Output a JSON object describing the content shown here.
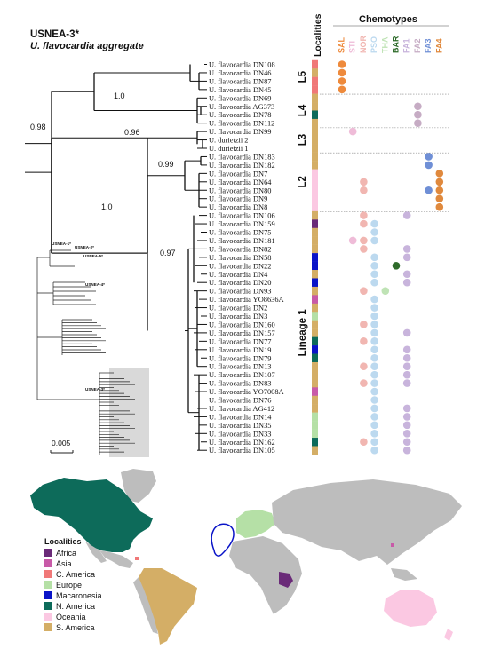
{
  "title": "USNEA-3*",
  "subtitle": "U. flavocardia aggregate",
  "localities_header": "Localities",
  "chemotypes_header": "Chemotypes",
  "scale_label": "0.005",
  "chemotypes": [
    {
      "name": "SAL",
      "color": "#ee8a3c"
    },
    {
      "name": "STI",
      "color": "#efbcd8"
    },
    {
      "name": "NOR",
      "color": "#f1b6b1"
    },
    {
      "name": "PSO",
      "color": "#bcd9ef"
    },
    {
      "name": "THA",
      "color": "#bfe3b5"
    },
    {
      "name": "BAR",
      "color": "#2e6b2a"
    },
    {
      "name": "FA1",
      "color": "#c8b4dc"
    },
    {
      "name": "FA2",
      "color": "#c6acc4"
    },
    {
      "name": "FA3",
      "color": "#6f8fd6"
    },
    {
      "name": "FA4",
      "color": "#e0893d"
    }
  ],
  "localities_legend": {
    "title": "Localities",
    "items": [
      {
        "name": "Africa",
        "color": "#6a2a78"
      },
      {
        "name": "Asia",
        "color": "#c85aa8"
      },
      {
        "name": "C. America",
        "color": "#f07878"
      },
      {
        "name": "Europe",
        "color": "#b5e0a6"
      },
      {
        "name": "Macaronesia",
        "color": "#0a14c8"
      },
      {
        "name": "N. America",
        "color": "#0d6b5a"
      },
      {
        "name": "Oceania",
        "color": "#fbc8e2"
      },
      {
        "name": "S. America",
        "color": "#d4ae66"
      }
    ]
  },
  "clades": [
    {
      "label": "L5"
    },
    {
      "label": "L4"
    },
    {
      "label": "L3"
    },
    {
      "label": "L2"
    },
    {
      "label": "Lineage 1"
    }
  ],
  "support_values": [
    "0.98",
    "1.0",
    "0.96",
    "0.99",
    "1.0",
    "0.97"
  ],
  "mini_tree_labels": [
    "USNEA-1*",
    "USNEA-2*",
    "USNEA-5*",
    "USNEA-4*",
    "USNEA-3*"
  ],
  "taxa": [
    {
      "name": "U. flavocardia DN108",
      "loc": "#f07878",
      "chem": [
        "SAL"
      ]
    },
    {
      "name": "U. flavocardia DN46",
      "loc": "#d4ae66",
      "chem": [
        "SAL"
      ]
    },
    {
      "name": "U. flavocardia DN87",
      "loc": "#f07878",
      "chem": [
        "SAL"
      ]
    },
    {
      "name": "U. flavocardia DN45",
      "loc": "#f07878",
      "chem": [
        "SAL"
      ]
    },
    {
      "name": "U. flavocardia DN69",
      "loc": "#d4ae66",
      "chem": []
    },
    {
      "name": "U. flavocardia AG373",
      "loc": "#d4ae66",
      "chem": [
        "FA2"
      ]
    },
    {
      "name": "U. flavocardia DN78",
      "loc": "#0d6b5a",
      "chem": [
        "FA2"
      ]
    },
    {
      "name": "U. flavocardia DN112",
      "loc": "#d4ae66",
      "chem": [
        "FA2"
      ]
    },
    {
      "name": "U. flavocardia DN99",
      "loc": "#d4ae66",
      "chem": [
        "STI"
      ]
    },
    {
      "name": "U. durietzii 2",
      "loc": "#d4ae66",
      "chem": []
    },
    {
      "name": "U. durietzii 1",
      "loc": "#d4ae66",
      "chem": []
    },
    {
      "name": "U. flavocardia DN183",
      "loc": "#d4ae66",
      "chem": [
        "FA3"
      ]
    },
    {
      "name": "U. flavocardia DN182",
      "loc": "#d4ae66",
      "chem": [
        "FA3"
      ]
    },
    {
      "name": "U. flavocardia DN7",
      "loc": "#fbc8e2",
      "chem": [
        "FA4"
      ]
    },
    {
      "name": "U. flavocardia DN64",
      "loc": "#fbc8e2",
      "chem": [
        "NOR",
        "FA4"
      ]
    },
    {
      "name": "U. flavocardia DN80",
      "loc": "#fbc8e2",
      "chem": [
        "NOR",
        "FA3",
        "FA4"
      ]
    },
    {
      "name": "U. flavocardia DN9",
      "loc": "#fbc8e2",
      "chem": [
        "FA4"
      ]
    },
    {
      "name": "U. flavocardia DN8",
      "loc": "#fbc8e2",
      "chem": [
        "FA4"
      ]
    },
    {
      "name": "U. flavocardia DN106",
      "loc": "#d4ae66",
      "chem": [
        "NOR",
        "FA1"
      ]
    },
    {
      "name": "U. flavocardia DN159",
      "loc": "#6a2a78",
      "chem": [
        "NOR",
        "PSO"
      ]
    },
    {
      "name": "U. flavocardia DN75",
      "loc": "#d4ae66",
      "chem": [
        "PSO"
      ]
    },
    {
      "name": "U. flavocardia DN181",
      "loc": "#d4ae66",
      "chem": [
        "STI",
        "NOR",
        "PSO"
      ]
    },
    {
      "name": "U. flavocardia DN82",
      "loc": "#d4ae66",
      "chem": [
        "NOR",
        "FA1"
      ]
    },
    {
      "name": "U. flavocardia DN58",
      "loc": "#0a14c8",
      "chem": [
        "PSO",
        "FA1"
      ]
    },
    {
      "name": "U. flavocardia DN22",
      "loc": "#0a14c8",
      "chem": [
        "PSO",
        "BAR"
      ]
    },
    {
      "name": "U. flavocardia DN4",
      "loc": "#d4ae66",
      "chem": [
        "PSO",
        "FA1"
      ]
    },
    {
      "name": "U. flavocardia DN20",
      "loc": "#0a14c8",
      "chem": [
        "PSO",
        "FA1"
      ]
    },
    {
      "name": "U. flavocardia DN93",
      "loc": "#d4ae66",
      "chem": [
        "NOR",
        "THA"
      ]
    },
    {
      "name": "U. flavocardia YO8636A",
      "loc": "#c85aa8",
      "chem": [
        "PSO"
      ]
    },
    {
      "name": "U. flavocardia DN2",
      "loc": "#d4ae66",
      "chem": [
        "PSO"
      ]
    },
    {
      "name": "U. flavocardia DN3",
      "loc": "#b5e0a6",
      "chem": [
        "PSO"
      ]
    },
    {
      "name": "U. flavocardia DN160",
      "loc": "#d4ae66",
      "chem": [
        "NOR",
        "PSO"
      ]
    },
    {
      "name": "U. flavocardia DN157",
      "loc": "#d4ae66",
      "chem": [
        "PSO",
        "FA1"
      ]
    },
    {
      "name": "U. flavocardia DN77",
      "loc": "#0d6b5a",
      "chem": [
        "NOR",
        "PSO"
      ]
    },
    {
      "name": "U. flavocardia DN19",
      "loc": "#0a14c8",
      "chem": [
        "PSO",
        "FA1"
      ]
    },
    {
      "name": "U. flavocardia DN79",
      "loc": "#0d6b5a",
      "chem": [
        "PSO",
        "FA1"
      ]
    },
    {
      "name": "U. flavocardia DN13",
      "loc": "#d4ae66",
      "chem": [
        "NOR",
        "PSO",
        "FA1"
      ]
    },
    {
      "name": "U. flavocardia DN107",
      "loc": "#d4ae66",
      "chem": [
        "PSO",
        "FA1"
      ]
    },
    {
      "name": "U. flavocardia DN83",
      "loc": "#d4ae66",
      "chem": [
        "NOR",
        "PSO",
        "FA1"
      ]
    },
    {
      "name": "U. flavocardia YO7008A",
      "loc": "#c85aa8",
      "chem": [
        "PSO"
      ]
    },
    {
      "name": "U. flavocardia DN76",
      "loc": "#d4ae66",
      "chem": [
        "PSO"
      ]
    },
    {
      "name": "U. flavocardia AG412",
      "loc": "#d4ae66",
      "chem": [
        "PSO",
        "FA1"
      ]
    },
    {
      "name": "U. flavocardia DN14",
      "loc": "#b5e0a6",
      "chem": [
        "PSO",
        "FA1"
      ]
    },
    {
      "name": "U. flavocardia DN35",
      "loc": "#b5e0a6",
      "chem": [
        "PSO",
        "FA1"
      ]
    },
    {
      "name": "U. flavocardia DN33",
      "loc": "#b5e0a6",
      "chem": [
        "PSO",
        "FA1"
      ]
    },
    {
      "name": "U. flavocardia DN162",
      "loc": "#0d6b5a",
      "chem": [
        "NOR",
        "PSO",
        "FA1"
      ]
    },
    {
      "name": "U. flavocardia DN105",
      "loc": "#d4ae66",
      "chem": [
        "PSO",
        "FA1"
      ]
    }
  ]
}
